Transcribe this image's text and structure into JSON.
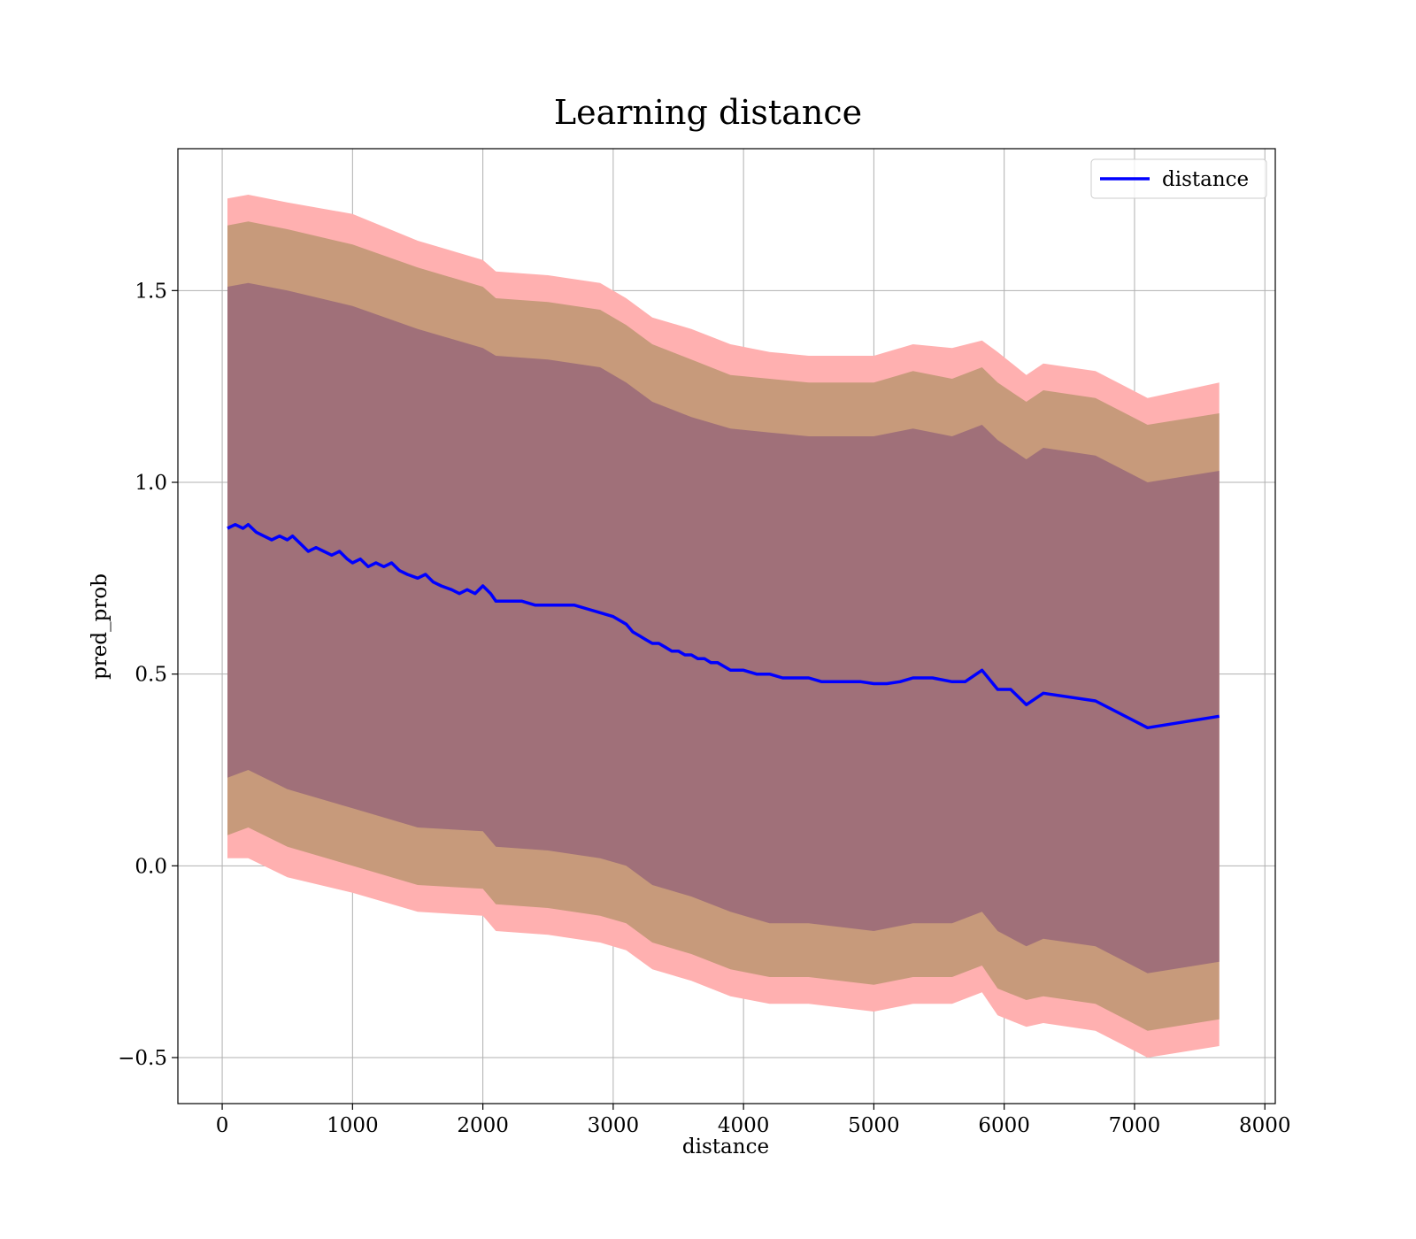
{
  "chart_data": {
    "type": "line",
    "title": "Learning distance",
    "xlabel": "distance",
    "ylabel": "pred_prob",
    "xlim": [
      -340,
      8080
    ],
    "ylim": [
      -0.62,
      1.87
    ],
    "x_ticks": [
      0,
      1000,
      2000,
      3000,
      4000,
      5000,
      6000,
      7000,
      8000
    ],
    "x_tick_labels": [
      "0",
      "1000",
      "2000",
      "3000",
      "4000",
      "5000",
      "6000",
      "7000",
      "8000"
    ],
    "y_ticks": [
      -0.5,
      0.0,
      0.5,
      1.0,
      1.5
    ],
    "y_tick_labels": [
      "−0.5",
      "0.0",
      "0.5",
      "1.0",
      "1.5"
    ],
    "grid": true,
    "legend_position": "top-right",
    "series": [
      {
        "name": "distance",
        "color": "#0000ff",
        "x": [
          40,
          100,
          160,
          200,
          260,
          320,
          380,
          440,
          500,
          540,
          600,
          660,
          720,
          780,
          840,
          900,
          960,
          1000,
          1060,
          1120,
          1180,
          1240,
          1300,
          1360,
          1420,
          1500,
          1560,
          1620,
          1680,
          1760,
          1820,
          1880,
          1940,
          2000,
          2060,
          2100,
          2200,
          2300,
          2400,
          2500,
          2600,
          2700,
          2800,
          2900,
          3000,
          3050,
          3100,
          3150,
          3200,
          3250,
          3300,
          3350,
          3400,
          3450,
          3500,
          3550,
          3600,
          3650,
          3700,
          3750,
          3800,
          3850,
          3900,
          3950,
          4000,
          4100,
          4200,
          4300,
          4400,
          4500,
          4600,
          4700,
          4800,
          4900,
          5000,
          5100,
          5200,
          5300,
          5450,
          5600,
          5700,
          5830,
          5950,
          6050,
          6170,
          6300,
          6700,
          7100,
          7650
        ],
        "y": [
          0.88,
          0.89,
          0.88,
          0.89,
          0.87,
          0.86,
          0.85,
          0.86,
          0.85,
          0.86,
          0.84,
          0.82,
          0.83,
          0.82,
          0.81,
          0.82,
          0.8,
          0.79,
          0.8,
          0.78,
          0.79,
          0.78,
          0.79,
          0.77,
          0.76,
          0.75,
          0.76,
          0.74,
          0.73,
          0.72,
          0.71,
          0.72,
          0.71,
          0.73,
          0.71,
          0.69,
          0.69,
          0.69,
          0.68,
          0.68,
          0.68,
          0.68,
          0.67,
          0.66,
          0.65,
          0.64,
          0.63,
          0.61,
          0.6,
          0.59,
          0.58,
          0.58,
          0.57,
          0.56,
          0.56,
          0.55,
          0.55,
          0.54,
          0.54,
          0.53,
          0.53,
          0.52,
          0.51,
          0.51,
          0.51,
          0.5,
          0.5,
          0.49,
          0.49,
          0.49,
          0.48,
          0.48,
          0.48,
          0.48,
          0.475,
          0.475,
          0.48,
          0.49,
          0.49,
          0.48,
          0.48,
          0.51,
          0.46,
          0.46,
          0.42,
          0.45,
          0.43,
          0.36,
          0.39
        ],
        "std_bands": [
          {
            "k": 1,
            "fill": "#7b3a4e",
            "upper_offset_at_start": 0.64,
            "lower_offset_at_start": -0.64
          },
          {
            "k": 2,
            "fill": "#c69a7c",
            "upper_offset_at_start": 0.79,
            "lower_offset_at_start": -0.79
          },
          {
            "k": 3,
            "fill": "#ffb0b0",
            "upper_offset_at_start": 0.86,
            "lower_offset_at_start": -0.86
          }
        ],
        "bands": {
          "outer": {
            "x": [
              40,
              200,
              500,
              1000,
              1500,
              2000,
              2100,
              2500,
              2900,
              3100,
              3300,
              3600,
              3900,
              4200,
              4500,
              5000,
              5300,
              5600,
              5830,
              5950,
              6170,
              6300,
              6700,
              7100,
              7650
            ],
            "upper": [
              1.74,
              1.75,
              1.73,
              1.7,
              1.63,
              1.58,
              1.55,
              1.54,
              1.52,
              1.48,
              1.43,
              1.4,
              1.36,
              1.34,
              1.33,
              1.33,
              1.36,
              1.35,
              1.37,
              1.34,
              1.28,
              1.31,
              1.29,
              1.22,
              1.26
            ],
            "lower": [
              0.02,
              0.02,
              -0.03,
              -0.07,
              -0.12,
              -0.13,
              -0.17,
              -0.18,
              -0.2,
              -0.22,
              -0.27,
              -0.3,
              -0.34,
              -0.36,
              -0.36,
              -0.38,
              -0.36,
              -0.36,
              -0.33,
              -0.39,
              -0.42,
              -0.41,
              -0.43,
              -0.5,
              -0.47
            ]
          },
          "middle": {
            "x": [
              40,
              200,
              500,
              1000,
              1500,
              2000,
              2100,
              2500,
              2900,
              3100,
              3300,
              3600,
              3900,
              4200,
              4500,
              5000,
              5300,
              5600,
              5830,
              5950,
              6170,
              6300,
              6700,
              7100,
              7650
            ],
            "upper": [
              1.67,
              1.68,
              1.66,
              1.62,
              1.56,
              1.51,
              1.48,
              1.47,
              1.45,
              1.41,
              1.36,
              1.32,
              1.28,
              1.27,
              1.26,
              1.26,
              1.29,
              1.27,
              1.3,
              1.26,
              1.21,
              1.24,
              1.22,
              1.15,
              1.18
            ],
            "lower": [
              0.08,
              0.1,
              0.05,
              0.0,
              -0.05,
              -0.06,
              -0.1,
              -0.11,
              -0.13,
              -0.15,
              -0.2,
              -0.23,
              -0.27,
              -0.29,
              -0.29,
              -0.31,
              -0.29,
              -0.29,
              -0.26,
              -0.32,
              -0.35,
              -0.34,
              -0.36,
              -0.43,
              -0.4
            ]
          },
          "inner": {
            "x": [
              40,
              200,
              500,
              1000,
              1500,
              2000,
              2100,
              2500,
              2900,
              3100,
              3300,
              3600,
              3900,
              4200,
              4500,
              5000,
              5300,
              5600,
              5830,
              5950,
              6170,
              6300,
              6700,
              7100,
              7650
            ],
            "upper": [
              1.51,
              1.52,
              1.5,
              1.46,
              1.4,
              1.35,
              1.33,
              1.32,
              1.3,
              1.26,
              1.21,
              1.17,
              1.14,
              1.13,
              1.12,
              1.12,
              1.14,
              1.12,
              1.15,
              1.11,
              1.06,
              1.09,
              1.07,
              1.0,
              1.03
            ],
            "lower": [
              0.23,
              0.25,
              0.2,
              0.15,
              0.1,
              0.09,
              0.05,
              0.04,
              0.02,
              0.0,
              -0.05,
              -0.08,
              -0.12,
              -0.15,
              -0.15,
              -0.17,
              -0.15,
              -0.15,
              -0.12,
              -0.17,
              -0.21,
              -0.19,
              -0.21,
              -0.28,
              -0.25
            ]
          }
        }
      }
    ],
    "band_colors": {
      "outer": "#ffb0b0",
      "middle": "#c79a7b",
      "inner": "#a07079"
    },
    "line_color": "#0000ff",
    "grid_color": "#b0b0b0",
    "legend": {
      "entries": [
        "distance"
      ]
    }
  }
}
